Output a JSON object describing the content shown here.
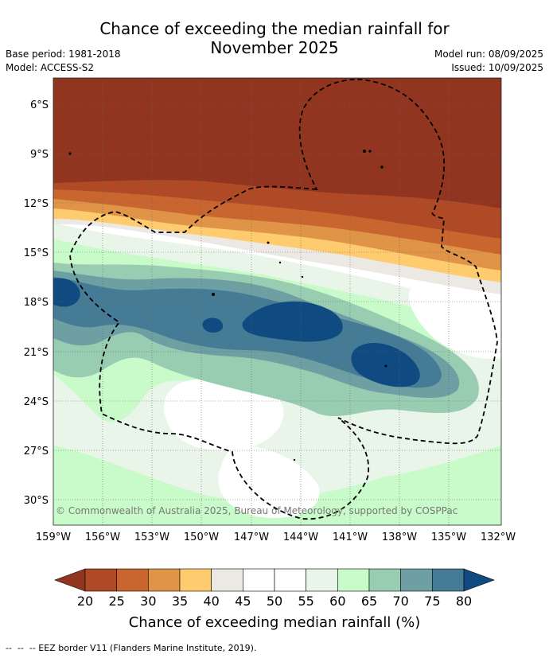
{
  "title": {
    "line1": "Chance of exceeding the median rainfall for",
    "line2": "November 2025"
  },
  "meta": {
    "base_period": "Base period: 1981-2018",
    "model": "Model: ACCESS-S2",
    "model_run": "Model run: 08/09/2025",
    "issued": "Issued: 10/09/2025"
  },
  "map": {
    "lat_labels": [
      "6°S",
      "9°S",
      "12°S",
      "15°S",
      "18°S",
      "21°S",
      "24°S",
      "27°S",
      "30°S"
    ],
    "lon_labels": [
      "159°W",
      "156°W",
      "153°W",
      "150°W",
      "147°W",
      "144°W",
      "141°W",
      "138°W",
      "135°W",
      "132°W"
    ],
    "copyright": "© Commonwealth of Australia 2025, Bureau of Meteorology, supported by COSPPac"
  },
  "colorbar": {
    "colors": [
      "#923520",
      "#b04a26",
      "#c9662f",
      "#df9447",
      "#fecb6e",
      "#ece9e4",
      "#ffffff",
      "#ffffff",
      "#e9f5e8",
      "#c9fbca",
      "#99cdb2",
      "#6d9fa3",
      "#467b96",
      "#0f4a80"
    ],
    "tick_labels": [
      "20",
      "25",
      "30",
      "35",
      "40",
      "45",
      "50",
      "55",
      "60",
      "65",
      "70",
      "75",
      "80"
    ],
    "title": "Chance of exceeding median rainfall (%)"
  },
  "footer": "--  --  -- EEZ border V11 (Flanders Marine Institute, 2019)."
}
